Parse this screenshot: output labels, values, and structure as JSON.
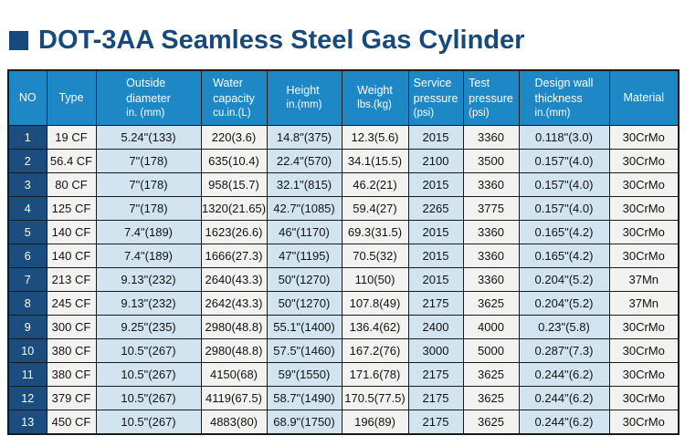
{
  "title": {
    "text": "DOT-3AA Seamless Steel Gas Cylinder"
  },
  "colors": {
    "title_navy": "#17497b",
    "header_blue": "#1e87c6",
    "row_navy": "#1b4d7e",
    "light_blue": "#d1e4ef",
    "off_white": "#f2f2f0",
    "border": "#1a1a1a"
  },
  "chart_data": {
    "type": "table",
    "title": "DOT-3AA Seamless Steel Gas Cylinder",
    "columns": [
      {
        "key": "no",
        "lines": [
          "NO"
        ]
      },
      {
        "key": "type",
        "lines": [
          "Type"
        ]
      },
      {
        "key": "diameter",
        "lines": [
          "Outside",
          "diameter",
          "in. (mm)"
        ]
      },
      {
        "key": "capacity",
        "lines": [
          "Water",
          "capacity",
          "cu.in.(L)"
        ]
      },
      {
        "key": "height",
        "lines": [
          "Height",
          "in.(mm)"
        ]
      },
      {
        "key": "weight",
        "lines": [
          "Weight",
          "lbs.(kg)"
        ]
      },
      {
        "key": "service",
        "lines": [
          "Service",
          "pressure",
          "(psi)"
        ]
      },
      {
        "key": "test",
        "lines": [
          "Test",
          "pressure",
          "(psi)"
        ]
      },
      {
        "key": "wall",
        "lines": [
          "Design wall",
          "thickness",
          "in.(mm)"
        ]
      },
      {
        "key": "material",
        "lines": [
          "Material"
        ]
      }
    ],
    "rows": [
      [
        "1",
        "19 CF",
        "5.24\"(133)",
        "220(3.6)",
        "14.8\"(375)",
        "12.3(5.6)",
        "2015",
        "3360",
        "0.118\"(3.0)",
        "30CrMo"
      ],
      [
        "2",
        "56.4 CF",
        "7\"(178)",
        "635(10.4)",
        "22.4\"(570)",
        "34.1(15.5)",
        "2100",
        "3500",
        "0.157\"(4.0)",
        "30CrMo"
      ],
      [
        "3",
        "80 CF",
        "7\"(178)",
        "958(15.7)",
        "32.1\"(815)",
        "46.2(21)",
        "2015",
        "3360",
        "0.157\"(4.0)",
        "30CrMo"
      ],
      [
        "4",
        "125 CF",
        "7\"(178)",
        "1320(21.65)",
        "42.7\"(1085)",
        "59.4(27)",
        "2265",
        "3775",
        "0.157\"(4.0)",
        "30CrMo"
      ],
      [
        "5",
        "140 CF",
        "7.4\"(189)",
        "1623(26.6)",
        "46\"(1170)",
        "69.3(31.5)",
        "2015",
        "3360",
        "0.165\"(4.2)",
        "30CrMo"
      ],
      [
        "6",
        "140 CF",
        "7.4\"(189)",
        "1666(27.3)",
        "47\"(1195)",
        "70.5(32)",
        "2015",
        "3360",
        "0.165\"(4.2)",
        "30CrMo"
      ],
      [
        "7",
        "213 CF",
        "9.13\"(232)",
        "2640(43.3)",
        "50\"(1270)",
        "110(50)",
        "2015",
        "3360",
        "0.204\"(5.2)",
        "37Mn"
      ],
      [
        "8",
        "245 CF",
        "9.13\"(232)",
        "2642(43.3)",
        "50\"(1270)",
        "107.8(49)",
        "2175",
        "3625",
        "0.204\"(5.2)",
        "37Mn"
      ],
      [
        "9",
        "300 CF",
        "9.25\"(235)",
        "2980(48.8)",
        "55.1\"(1400)",
        "136.4(62)",
        "2400",
        "4000",
        "0.23\"(5.8)",
        "30CrMo"
      ],
      [
        "10",
        "380 CF",
        "10.5\"(267)",
        "2980(48.8)",
        "57.5\"(1460)",
        "167.2(76)",
        "3000",
        "5000",
        "0.287\"(7.3)",
        "30CrMo"
      ],
      [
        "11",
        "380 CF",
        "10.5\"(267)",
        "4150(68)",
        "59\"(1550)",
        "171.6(78)",
        "2175",
        "3625",
        "0.244\"(6.2)",
        "30CrMo"
      ],
      [
        "12",
        "379 CF",
        "10.5\"(267)",
        "4119(67.5)",
        "58.7\"(1490)",
        "170.5(77.5)",
        "2175",
        "3625",
        "0.244\"(6.2)",
        "30CrMo"
      ],
      [
        "13",
        "450 CF",
        "10.5\"(267)",
        "4883(80)",
        "68.9\"(1750)",
        "196(89)",
        "2175",
        "3625",
        "0.244\"(6.2)",
        "30CrMo"
      ]
    ]
  }
}
